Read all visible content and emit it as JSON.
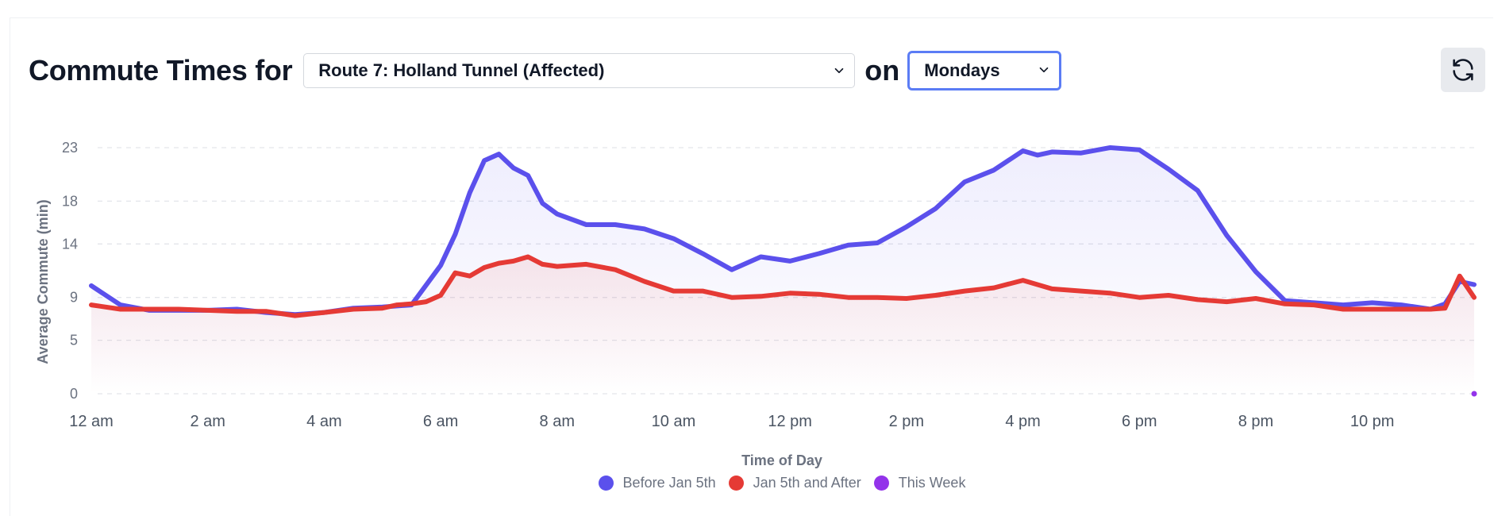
{
  "header": {
    "title": "Commute Times for",
    "route_select": "Route 7: Holland Tunnel (Affected)",
    "on_label": "on",
    "day_select": "Mondays"
  },
  "colors": {
    "before": "#5b50ec",
    "after": "#e53a35",
    "this_week": "#9333ea"
  },
  "chart_data": {
    "type": "line",
    "xlabel": "Time of Day",
    "ylabel": "Average Commute (min)",
    "y_ticks": [
      0,
      5,
      9,
      14,
      18,
      23
    ],
    "ylim": [
      0,
      23
    ],
    "x_ticks": [
      "12 am",
      "2 am",
      "4 am",
      "6 am",
      "8 am",
      "10 am",
      "12 pm",
      "2 pm",
      "4 pm",
      "6 pm",
      "8 pm",
      "10 pm"
    ],
    "x_unit": "hour of day",
    "xlim": [
      0,
      23.75
    ],
    "grid": true,
    "legend_position": "bottom",
    "series": [
      {
        "name": "Before Jan 5th",
        "color_key": "before",
        "area": true,
        "x": [
          0,
          0.5,
          1,
          1.5,
          2,
          2.5,
          3,
          3.5,
          4,
          4.5,
          5,
          5.5,
          6,
          6.25,
          6.5,
          6.75,
          7,
          7.25,
          7.5,
          7.75,
          8,
          8.5,
          9,
          9.5,
          10,
          10.5,
          11,
          11.5,
          12,
          12.5,
          13,
          13.5,
          14,
          14.5,
          15,
          15.5,
          16,
          16.25,
          16.5,
          17,
          17.5,
          18,
          18.5,
          19,
          19.5,
          20,
          20.5,
          21,
          21.5,
          22,
          22.5,
          23,
          23.25,
          23.5,
          23.75
        ],
        "values": [
          10.1,
          8.3,
          7.8,
          7.8,
          7.8,
          7.9,
          7.6,
          7.4,
          7.6,
          8.0,
          8.1,
          8.3,
          12.0,
          14.9,
          18.8,
          21.8,
          22.4,
          21.1,
          20.4,
          17.8,
          16.8,
          15.8,
          15.8,
          15.4,
          14.5,
          13.1,
          11.6,
          12.8,
          12.4,
          13.1,
          13.9,
          14.1,
          15.6,
          17.3,
          19.8,
          20.9,
          22.7,
          22.3,
          22.6,
          22.5,
          23.0,
          22.8,
          21.0,
          19.0,
          14.8,
          11.4,
          8.7,
          8.5,
          8.3,
          8.5,
          8.3,
          7.9,
          8.4,
          10.5,
          10.2
        ]
      },
      {
        "name": "Jan 5th and After",
        "color_key": "after",
        "area": true,
        "x": [
          0,
          0.5,
          1,
          1.5,
          2,
          2.5,
          3,
          3.5,
          4,
          4.5,
          5,
          5.25,
          5.5,
          5.75,
          6,
          6.25,
          6.5,
          6.75,
          7,
          7.25,
          7.5,
          7.75,
          8,
          8.5,
          9,
          9.5,
          10,
          10.5,
          11,
          11.5,
          12,
          12.5,
          13,
          13.5,
          14,
          14.5,
          15,
          15.5,
          16,
          16.5,
          17,
          17.5,
          18,
          18.5,
          19,
          19.5,
          20,
          20.5,
          21,
          21.5,
          22,
          22.5,
          23,
          23.25,
          23.5,
          23.75
        ],
        "values": [
          8.3,
          7.9,
          7.9,
          7.9,
          7.8,
          7.7,
          7.7,
          7.3,
          7.6,
          7.9,
          8.0,
          8.3,
          8.4,
          8.6,
          9.2,
          11.3,
          11.0,
          11.8,
          12.2,
          12.4,
          12.8,
          12.1,
          11.9,
          12.1,
          11.6,
          10.5,
          9.6,
          9.6,
          9.0,
          9.1,
          9.4,
          9.3,
          9.0,
          9.0,
          8.9,
          9.2,
          9.6,
          9.9,
          10.6,
          9.8,
          9.6,
          9.4,
          9.0,
          9.2,
          8.8,
          8.6,
          8.9,
          8.4,
          8.3,
          7.9,
          7.9,
          7.9,
          7.9,
          8.0,
          11.0,
          9.0
        ]
      },
      {
        "name": "This Week",
        "color_key": "this_week",
        "area": false,
        "x": [
          23.75
        ],
        "values": [
          0
        ]
      }
    ]
  }
}
